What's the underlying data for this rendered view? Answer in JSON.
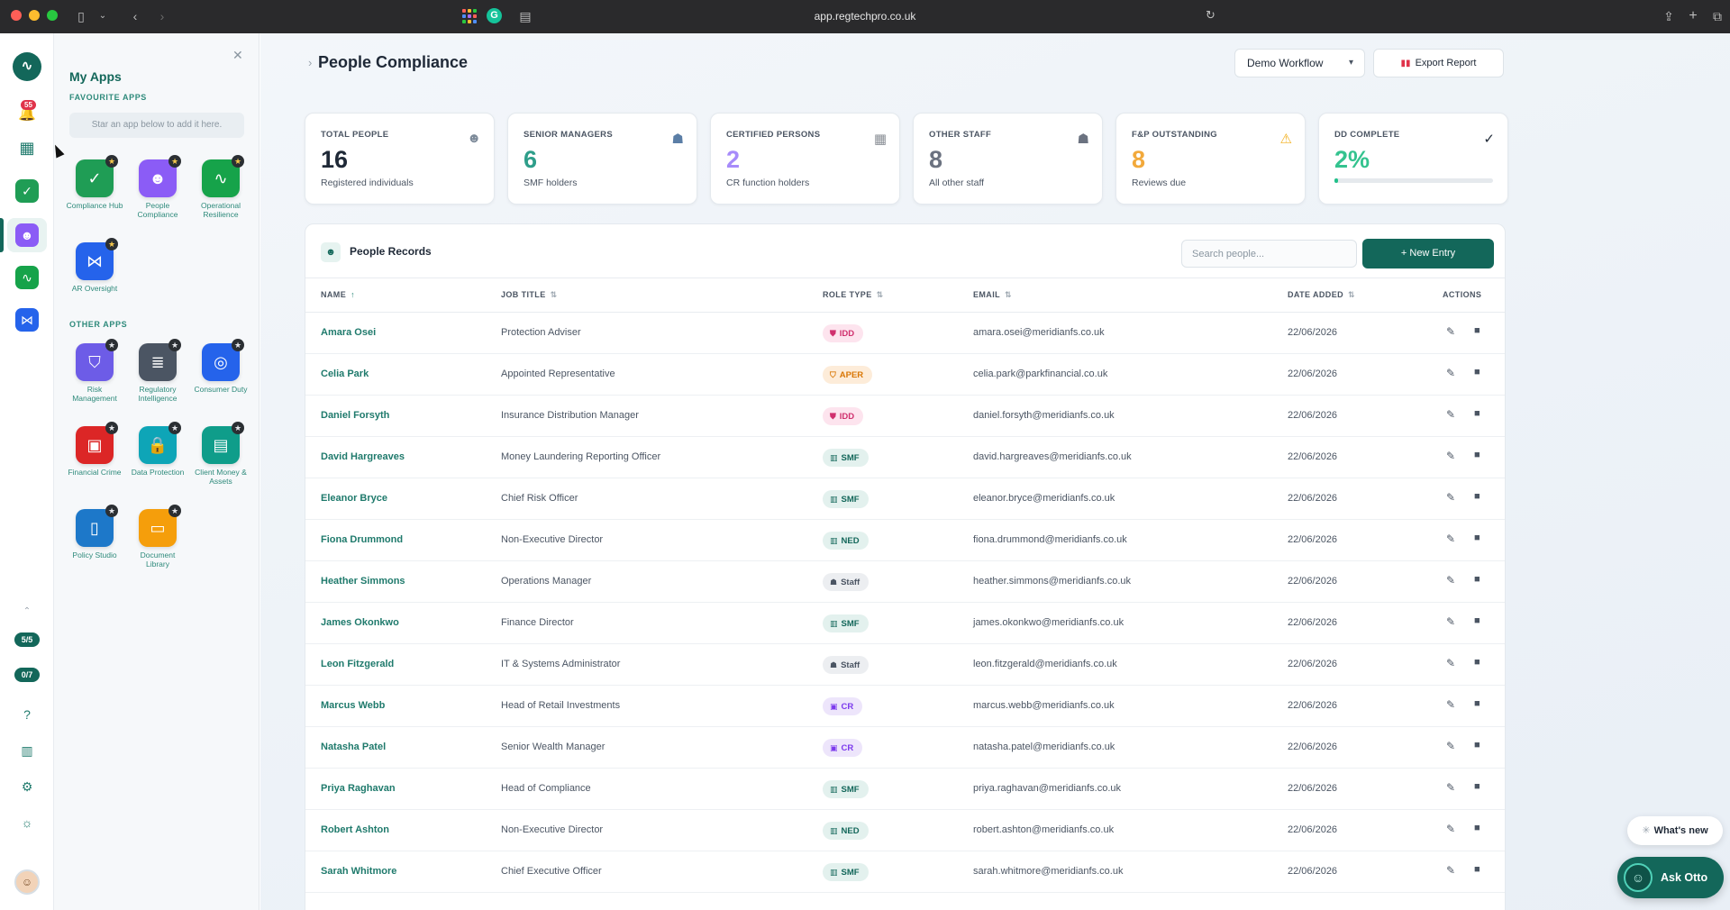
{
  "browser": {
    "url": "app.regtechpro.co.uk"
  },
  "rail": {
    "notifications_count": "55",
    "pill_1": "5/5",
    "pill_2": "0/7"
  },
  "apps_panel": {
    "title": "My Apps",
    "favourites_label": "FAVOURITE APPS",
    "star_hint": "Star an app below to add it here.",
    "other_label": "OTHER APPS",
    "favourites": [
      {
        "label": "Compliance Hub",
        "color": "#1f9d55",
        "icon": "clipboard-check-icon"
      },
      {
        "label": "People Compliance",
        "color": "#8b5cf6",
        "icon": "people-icon"
      },
      {
        "label": "Operational Resilience",
        "color": "#16a34a",
        "icon": "pulse-icon"
      },
      {
        "label": "AR Oversight",
        "color": "#2563eb",
        "icon": "share-icon"
      }
    ],
    "others": [
      {
        "label": "Risk Management",
        "color": "#6d5ce7",
        "icon": "shield-check-icon"
      },
      {
        "label": "Regulatory Intelligence",
        "color": "#4b5563",
        "icon": "document-icon"
      },
      {
        "label": "Consumer Duty",
        "color": "#2563eb",
        "icon": "target-icon"
      },
      {
        "label": "Financial Crime",
        "color": "#dc2626",
        "icon": "banknote-icon"
      },
      {
        "label": "Data Protection",
        "color": "#0ea5b7",
        "icon": "lock-icon"
      },
      {
        "label": "Client Money & Assets",
        "color": "#0f9d8a",
        "icon": "briefcase-icon"
      },
      {
        "label": "Policy Studio",
        "color": "#1d78c9",
        "icon": "tablet-icon"
      },
      {
        "label": "Document Library",
        "color": "#f59e0b",
        "icon": "folder-icon"
      }
    ]
  },
  "header": {
    "title": "People Compliance",
    "workflow_label": "Demo Workflow",
    "export_label": "Export Report"
  },
  "stats": [
    {
      "label": "TOTAL PEOPLE",
      "value": "16",
      "sub": "Registered individuals",
      "color": "#1f2937",
      "icon": "people-icon"
    },
    {
      "label": "SENIOR MANAGERS",
      "value": "6",
      "sub": "SMF holders",
      "color": "#2e9e8a",
      "icon": "manager-icon"
    },
    {
      "label": "CERTIFIED PERSONS",
      "value": "2",
      "sub": "CR function holders",
      "color": "#a78bfa",
      "icon": "certificate-icon"
    },
    {
      "label": "OTHER STAFF",
      "value": "8",
      "sub": "All other staff",
      "color": "#6b7280",
      "icon": "person-icon"
    },
    {
      "label": "F&P OUTSTANDING",
      "value": "8",
      "sub": "Reviews due",
      "color": "#f2a93b",
      "icon": "warning-icon"
    },
    {
      "label": "DD COMPLETE",
      "value": "2%",
      "sub": "",
      "color": "#34c38f",
      "icon": "check-icon",
      "progress": 0.02
    }
  ],
  "records": {
    "title": "People Records",
    "search_placeholder": "Search people...",
    "new_entry_label": "+ New Entry",
    "columns": [
      "NAME",
      "JOB TITLE",
      "ROLE TYPE",
      "EMAIL",
      "DATE ADDED",
      "ACTIONS"
    ],
    "rows": [
      {
        "name": "Amara Osei",
        "title": "Protection Adviser",
        "role": "IDD",
        "email": "amara.osei@meridianfs.co.uk",
        "date": "22/06/2026"
      },
      {
        "name": "Celia Park",
        "title": "Appointed Representative",
        "role": "APER",
        "email": "celia.park@parkfinancial.co.uk",
        "date": "22/06/2026"
      },
      {
        "name": "Daniel Forsyth",
        "title": "Insurance Distribution Manager",
        "role": "IDD",
        "email": "daniel.forsyth@meridianfs.co.uk",
        "date": "22/06/2026"
      },
      {
        "name": "David Hargreaves",
        "title": "Money Laundering Reporting Officer",
        "role": "SMF",
        "email": "david.hargreaves@meridianfs.co.uk",
        "date": "22/06/2026"
      },
      {
        "name": "Eleanor Bryce",
        "title": "Chief Risk Officer",
        "role": "SMF",
        "email": "eleanor.bryce@meridianfs.co.uk",
        "date": "22/06/2026"
      },
      {
        "name": "Fiona Drummond",
        "title": "Non-Executive Director",
        "role": "NED",
        "email": "fiona.drummond@meridianfs.co.uk",
        "date": "22/06/2026"
      },
      {
        "name": "Heather Simmons",
        "title": "Operations Manager",
        "role": "Staff",
        "email": "heather.simmons@meridianfs.co.uk",
        "date": "22/06/2026"
      },
      {
        "name": "James Okonkwo",
        "title": "Finance Director",
        "role": "SMF",
        "email": "james.okonkwo@meridianfs.co.uk",
        "date": "22/06/2026"
      },
      {
        "name": "Leon Fitzgerald",
        "title": "IT & Systems Administrator",
        "role": "Staff",
        "email": "leon.fitzgerald@meridianfs.co.uk",
        "date": "22/06/2026"
      },
      {
        "name": "Marcus Webb",
        "title": "Head of Retail Investments",
        "role": "CR",
        "email": "marcus.webb@meridianfs.co.uk",
        "date": "22/06/2026"
      },
      {
        "name": "Natasha Patel",
        "title": "Senior Wealth Manager",
        "role": "CR",
        "email": "natasha.patel@meridianfs.co.uk",
        "date": "22/06/2026"
      },
      {
        "name": "Priya Raghavan",
        "title": "Head of Compliance",
        "role": "SMF",
        "email": "priya.raghavan@meridianfs.co.uk",
        "date": "22/06/2026"
      },
      {
        "name": "Robert Ashton",
        "title": "Non-Executive Director",
        "role": "NED",
        "email": "robert.ashton@meridianfs.co.uk",
        "date": "22/06/2026"
      },
      {
        "name": "Sarah Whitmore",
        "title": "Chief Executive Officer",
        "role": "SMF",
        "email": "sarah.whitmore@meridianfs.co.uk",
        "date": "22/06/2026"
      }
    ]
  },
  "floating": {
    "whats_new": "What's new",
    "ask_otto": "Ask Otto"
  }
}
